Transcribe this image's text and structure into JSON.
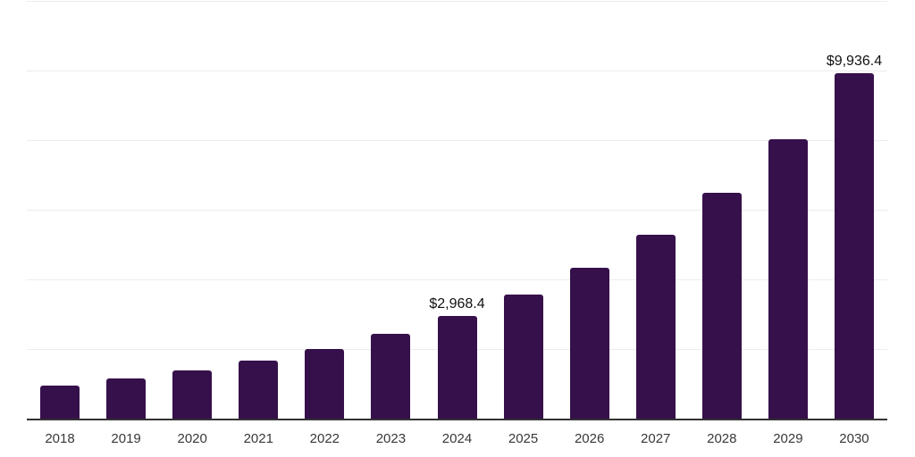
{
  "chart_data": {
    "type": "bar",
    "title": "",
    "xlabel": "",
    "ylabel": "",
    "categories": [
      "2018",
      "2019",
      "2020",
      "2021",
      "2022",
      "2023",
      "2024",
      "2025",
      "2026",
      "2027",
      "2028",
      "2029",
      "2030"
    ],
    "values": [
      980,
      1170,
      1400,
      1700,
      2020,
      2460,
      2968.4,
      3600,
      4370,
      5320,
      6520,
      8050,
      9936.4
    ],
    "data_labels": [
      "",
      "",
      "",
      "",
      "",
      "",
      "$2,968.4",
      "",
      "",
      "",
      "",
      "",
      "$9,936.4"
    ],
    "ylim": [
      0,
      12000
    ],
    "gridline_step": 2000,
    "grid": "horizontal",
    "y_tick_labels": "none",
    "legend": "none",
    "colors": {
      "bar": "#36104B",
      "axis_line": "#333333",
      "gridline": "#ececec",
      "data_label": "#111111",
      "tick_label": "#383838",
      "background": "#ffffff"
    }
  }
}
